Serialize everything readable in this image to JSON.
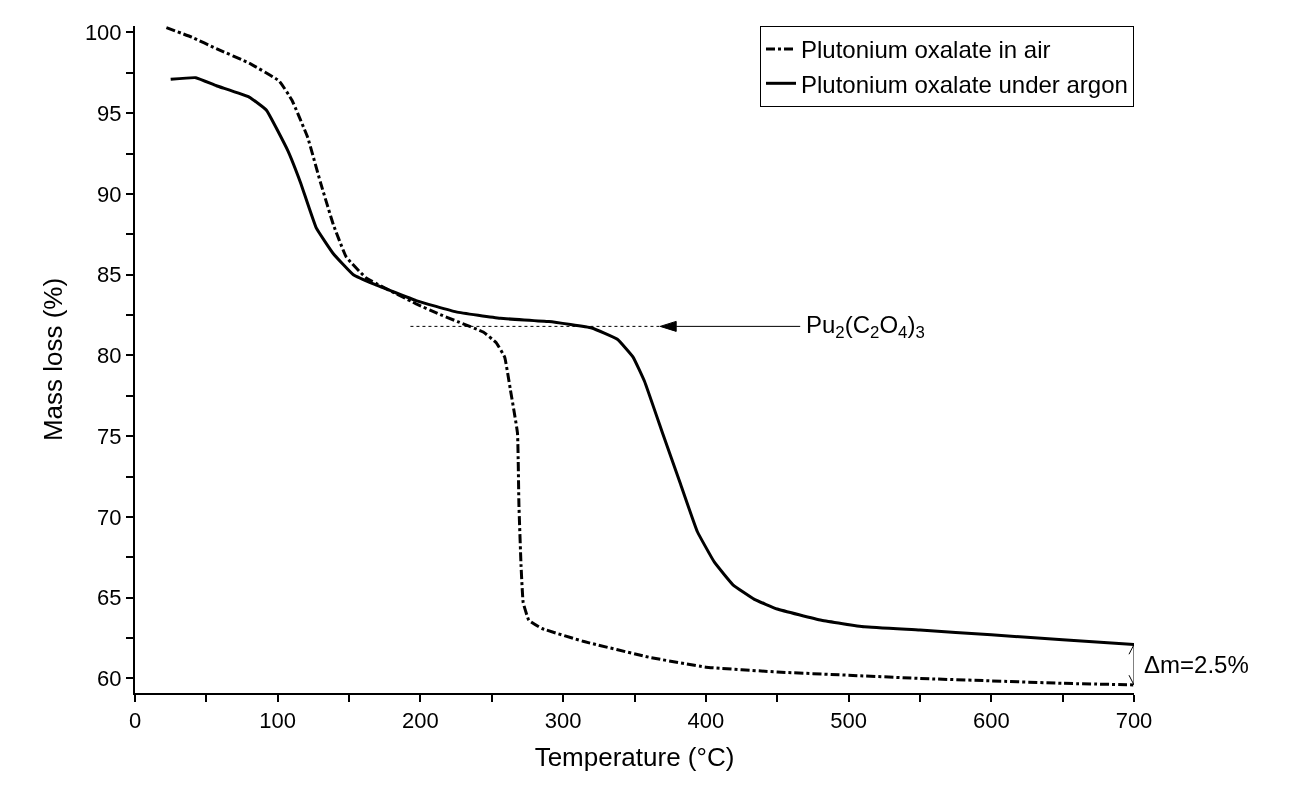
{
  "chart_data": {
    "type": "line",
    "xlabel": "Temperature (°C)",
    "ylabel": "Mass loss (%)",
    "xlim": [
      0,
      700
    ],
    "xticks": [
      0,
      {
        "value": 50,
        "label": null
      },
      100,
      {
        "value": 150,
        "label": null
      },
      200,
      {
        "value": 250,
        "label": null
      },
      300,
      {
        "value": 350,
        "label": null
      },
      400,
      {
        "value": 450,
        "label": null
      },
      500,
      {
        "value": 550,
        "label": null
      },
      600,
      {
        "value": 650,
        "label": null
      },
      700
    ],
    "ylim": [
      59.1,
      100.4
    ],
    "yticks": [
      60,
      {
        "value": 62.5,
        "label": null
      },
      65,
      {
        "value": 67.5,
        "label": null
      },
      70,
      {
        "value": 72.5,
        "label": null
      },
      75,
      {
        "value": 77.5,
        "label": null
      },
      80,
      {
        "value": 82.5,
        "label": null
      },
      85,
      {
        "value": 87.5,
        "label": null
      },
      90,
      {
        "value": 92.5,
        "label": null
      },
      95,
      {
        "value": 97.5,
        "label": null
      },
      100
    ],
    "legend": "top right",
    "marker": "none",
    "series": [
      {
        "name": "Plutonium oxalate in air",
        "color": "#000000",
        "line_style": "dashdot",
        "x": [
          22,
          40,
          57,
          80,
          101,
          110,
          121,
          130,
          139,
          148,
          162,
          197,
          212,
          226,
          244,
          253,
          259,
          263,
          268,
          269,
          270.5,
          272,
          276,
          285,
          314,
          361,
          400,
          450,
          500,
          550,
          600,
          650,
          700
        ],
        "values": [
          100.3,
          99.7,
          99.0,
          98.1,
          97.0,
          95.8,
          93.5,
          90.7,
          88.1,
          86.1,
          84.8,
          83.2,
          82.6,
          82.1,
          81.45,
          80.8,
          79.9,
          77.9,
          75.2,
          70.8,
          67.0,
          64.7,
          63.6,
          63.1,
          62.3,
          61.3,
          60.7,
          60.4,
          60.2,
          60.0,
          59.85,
          59.7,
          59.6
        ]
      },
      {
        "name": "Plutonium oxalate under argon",
        "color": "#000000",
        "line_style": "solid",
        "x": [
          25,
          42.6,
          57,
          80,
          92,
          107,
          116,
          127,
          139,
          153,
          168,
          197,
          225,
          256,
          290,
          320,
          338,
          349,
          357,
          370,
          382,
          394,
          406,
          419,
          434,
          450,
          481,
          511,
          550,
          600,
          650,
          700
        ],
        "values": [
          97.1,
          97.2,
          96.7,
          96.0,
          95.2,
          92.7,
          90.7,
          87.9,
          86.3,
          85.0,
          84.4,
          83.4,
          82.7,
          82.3,
          82.1,
          81.7,
          81.0,
          79.9,
          78.4,
          75.1,
          72.1,
          69.1,
          67.2,
          65.8,
          64.9,
          64.3,
          63.6,
          63.2,
          63.0,
          62.7,
          62.4,
          62.1
        ]
      },
      {
        "color": "#000000",
        "line_style": "dotted",
        "x": [
          193,
          368
        ],
        "values": [
          81.8,
          81.8
        ]
      }
    ],
    "annotations": [
      "Pu$_{2}$(C$_{2}$O$_{4}$)$_{3}$",
      "Δm=2.5%"
    ]
  }
}
